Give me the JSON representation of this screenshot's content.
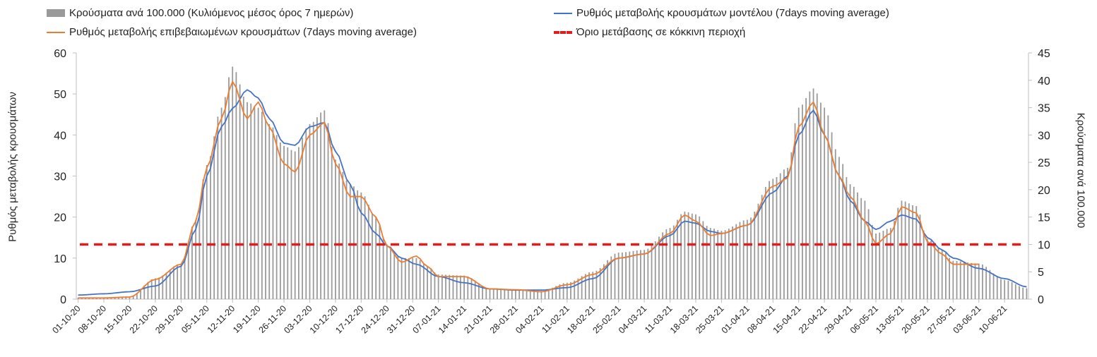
{
  "chart_data": {
    "type": "bar+line",
    "title": "",
    "ylabel_left": "Ρυθμός μεταβολής κρουσμάτων",
    "ylabel_right": "Κρούσματα ανά 100.000",
    "ylim_left": [
      0,
      60
    ],
    "ylim_right": [
      0,
      45
    ],
    "yticks_left": [
      "0",
      "10",
      "20",
      "30",
      "40",
      "50",
      "60"
    ],
    "yticks_right": [
      "0",
      "5",
      "10",
      "15",
      "20",
      "25",
      "30",
      "35",
      "40",
      "45"
    ],
    "x_start": "2020-10-01",
    "x_end": "2021-06-16",
    "xtick_labels": [
      "01-10-20",
      "08-10-20",
      "15-10-20",
      "22-10-20",
      "29-10-20",
      "05-11-20",
      "12-11-20",
      "19-11-20",
      "26-11-20",
      "03-12-20",
      "10-12-20",
      "17-12-20",
      "24-12-20",
      "31-12-20",
      "07-01-21",
      "14-01-21",
      "21-01-21",
      "28-01-21",
      "04-02-21",
      "11-02-21",
      "18-02-21",
      "25-02-21",
      "04-03-21",
      "11-03-21",
      "18-03-21",
      "25-03-21",
      "01-04-21",
      "08-04-21",
      "15-04-21",
      "22-04-21",
      "29-04-21",
      "06-05-21",
      "13-05-21",
      "20-05-21",
      "27-05-21",
      "03-06-21",
      "10-06-21"
    ],
    "legend_position": "top",
    "series": [
      {
        "name": "Κρούσματα ανά 100.000 (Κυλιόμενος μέσος όρος 7 ημερών)",
        "type": "bar",
        "axis": "right",
        "color": "#9a9a9a",
        "anchors": [
          [
            "2020-10-01",
            0.3
          ],
          [
            "2020-10-08",
            0.3
          ],
          [
            "2020-10-15",
            0.5
          ],
          [
            "2020-10-22",
            3.8
          ],
          [
            "2020-10-29",
            6.5
          ],
          [
            "2020-11-02",
            14.5
          ],
          [
            "2020-11-05",
            24.5
          ],
          [
            "2020-11-09",
            35
          ],
          [
            "2020-11-12",
            42.5
          ],
          [
            "2020-11-16",
            36
          ],
          [
            "2020-11-19",
            35
          ],
          [
            "2020-11-22",
            32
          ],
          [
            "2020-11-26",
            28
          ],
          [
            "2020-11-29",
            27
          ],
          [
            "2020-12-03",
            32
          ],
          [
            "2020-12-07",
            34.5
          ],
          [
            "2020-12-10",
            25.5
          ],
          [
            "2020-12-14",
            21
          ],
          [
            "2020-12-17",
            19.5
          ],
          [
            "2020-12-21",
            15
          ],
          [
            "2020-12-24",
            10
          ],
          [
            "2020-12-28",
            7.5
          ],
          [
            "2021-01-01",
            7.5
          ],
          [
            "2021-01-04",
            6
          ],
          [
            "2021-01-07",
            4.5
          ],
          [
            "2021-01-14",
            4.3
          ],
          [
            "2021-01-21",
            2
          ],
          [
            "2021-01-28",
            1.8
          ],
          [
            "2021-02-04",
            1.5
          ],
          [
            "2021-02-11",
            3
          ],
          [
            "2021-02-18",
            5
          ],
          [
            "2021-02-25",
            8.5
          ],
          [
            "2021-03-04",
            9
          ],
          [
            "2021-03-11",
            13
          ],
          [
            "2021-03-15",
            16
          ],
          [
            "2021-03-18",
            15.5
          ],
          [
            "2021-03-22",
            13
          ],
          [
            "2021-03-25",
            12.5
          ],
          [
            "2021-04-01",
            14.5
          ],
          [
            "2021-04-08",
            22
          ],
          [
            "2021-04-12",
            24
          ],
          [
            "2021-04-15",
            35
          ],
          [
            "2021-04-19",
            38.5
          ],
          [
            "2021-04-22",
            35
          ],
          [
            "2021-04-26",
            26
          ],
          [
            "2021-04-29",
            21
          ],
          [
            "2021-05-03",
            18
          ],
          [
            "2021-05-06",
            12
          ],
          [
            "2021-05-10",
            13
          ],
          [
            "2021-05-13",
            18
          ],
          [
            "2021-05-17",
            17
          ],
          [
            "2021-05-20",
            11
          ],
          [
            "2021-05-24",
            9
          ],
          [
            "2021-05-27",
            7
          ],
          [
            "2021-06-03",
            6.5
          ],
          [
            "2021-06-10",
            3.5
          ],
          [
            "2021-06-16",
            2
          ]
        ]
      },
      {
        "name": "Ρυθμός μεταβολής κρουσμάτων μοντέλου (7days moving average)",
        "type": "line",
        "axis": "left",
        "color": "#4472c4",
        "anchors": [
          [
            "2020-10-01",
            1
          ],
          [
            "2020-10-08",
            1.3
          ],
          [
            "2020-10-15",
            1.8
          ],
          [
            "2020-10-22",
            3.2
          ],
          [
            "2020-10-29",
            8
          ],
          [
            "2020-11-02",
            17
          ],
          [
            "2020-11-05",
            30
          ],
          [
            "2020-11-09",
            42
          ],
          [
            "2020-11-12",
            46.5
          ],
          [
            "2020-11-16",
            51
          ],
          [
            "2020-11-19",
            49
          ],
          [
            "2020-11-22",
            44
          ],
          [
            "2020-11-26",
            38
          ],
          [
            "2020-11-29",
            37.5
          ],
          [
            "2020-12-03",
            42
          ],
          [
            "2020-12-07",
            43
          ],
          [
            "2020-12-10",
            36
          ],
          [
            "2020-12-14",
            28
          ],
          [
            "2020-12-17",
            21
          ],
          [
            "2020-12-21",
            16
          ],
          [
            "2020-12-24",
            13
          ],
          [
            "2020-12-28",
            10
          ],
          [
            "2021-01-01",
            8.5
          ],
          [
            "2021-01-07",
            5.5
          ],
          [
            "2021-01-14",
            4
          ],
          [
            "2021-01-21",
            2.5
          ],
          [
            "2021-01-28",
            2.2
          ],
          [
            "2021-02-04",
            2.2
          ],
          [
            "2021-02-11",
            2.8
          ],
          [
            "2021-02-18",
            5
          ],
          [
            "2021-02-25",
            10
          ],
          [
            "2021-03-04",
            11
          ],
          [
            "2021-03-11",
            15.5
          ],
          [
            "2021-03-15",
            19
          ],
          [
            "2021-03-18",
            18.5
          ],
          [
            "2021-03-22",
            16.5
          ],
          [
            "2021-03-25",
            16
          ],
          [
            "2021-04-01",
            18
          ],
          [
            "2021-04-08",
            26
          ],
          [
            "2021-04-12",
            30
          ],
          [
            "2021-04-15",
            40
          ],
          [
            "2021-04-19",
            46
          ],
          [
            "2021-04-22",
            40
          ],
          [
            "2021-04-26",
            30
          ],
          [
            "2021-04-29",
            24
          ],
          [
            "2021-05-03",
            19
          ],
          [
            "2021-05-06",
            17
          ],
          [
            "2021-05-10",
            19
          ],
          [
            "2021-05-13",
            20.5
          ],
          [
            "2021-05-17",
            19.5
          ],
          [
            "2021-05-20",
            15
          ],
          [
            "2021-05-24",
            12
          ],
          [
            "2021-05-27",
            10
          ],
          [
            "2021-06-03",
            7.5
          ],
          [
            "2021-06-10",
            5
          ],
          [
            "2021-06-16",
            3
          ]
        ]
      },
      {
        "name": "Ρυθμός μεταβολής επιβεβαιωμένων κρουσμάτων (7days moving average)",
        "type": "line",
        "axis": "left",
        "color": "#ed7d31",
        "anchors": [
          [
            "2020-10-01",
            0.3
          ],
          [
            "2020-10-08",
            0.3
          ],
          [
            "2020-10-15",
            0.5
          ],
          [
            "2020-10-22",
            4.8
          ],
          [
            "2020-10-29",
            8.5
          ],
          [
            "2020-11-02",
            19
          ],
          [
            "2020-11-05",
            32
          ],
          [
            "2020-11-09",
            44
          ],
          [
            "2020-11-12",
            53
          ],
          [
            "2020-11-16",
            44
          ],
          [
            "2020-11-19",
            48
          ],
          [
            "2020-11-22",
            42
          ],
          [
            "2020-11-26",
            33
          ],
          [
            "2020-11-29",
            31
          ],
          [
            "2020-12-03",
            40
          ],
          [
            "2020-12-07",
            43
          ],
          [
            "2020-12-10",
            33
          ],
          [
            "2020-12-14",
            25
          ],
          [
            "2020-12-17",
            25
          ],
          [
            "2020-12-21",
            20
          ],
          [
            "2020-12-24",
            13
          ],
          [
            "2020-12-28",
            9
          ],
          [
            "2021-01-01",
            10.5
          ],
          [
            "2021-01-04",
            8
          ],
          [
            "2021-01-07",
            5.5
          ],
          [
            "2021-01-14",
            5.5
          ],
          [
            "2021-01-21",
            2.5
          ],
          [
            "2021-01-28",
            2.3
          ],
          [
            "2021-02-04",
            1.8
          ],
          [
            "2021-02-11",
            3.5
          ],
          [
            "2021-02-18",
            6
          ],
          [
            "2021-02-25",
            10
          ],
          [
            "2021-03-04",
            11
          ],
          [
            "2021-03-11",
            16
          ],
          [
            "2021-03-15",
            20.5
          ],
          [
            "2021-03-18",
            19
          ],
          [
            "2021-03-22",
            15.5
          ],
          [
            "2021-03-25",
            16
          ],
          [
            "2021-04-01",
            18
          ],
          [
            "2021-04-08",
            27.5
          ],
          [
            "2021-04-12",
            29.5
          ],
          [
            "2021-04-15",
            42
          ],
          [
            "2021-04-19",
            48
          ],
          [
            "2021-04-22",
            40
          ],
          [
            "2021-04-26",
            30
          ],
          [
            "2021-04-29",
            25
          ],
          [
            "2021-05-03",
            19
          ],
          [
            "2021-05-06",
            13.5
          ],
          [
            "2021-05-10",
            16
          ],
          [
            "2021-05-13",
            22.5
          ],
          [
            "2021-05-17",
            21
          ],
          [
            "2021-05-20",
            14
          ],
          [
            "2021-05-24",
            11
          ],
          [
            "2021-05-27",
            8.5
          ],
          [
            "2021-06-03",
            8.5
          ]
        ]
      },
      {
        "name": "Όριο μετάβασης σε κόκκινη περιοχή",
        "type": "hline",
        "axis": "right",
        "color": "#e31b1b",
        "value": 10
      }
    ]
  }
}
